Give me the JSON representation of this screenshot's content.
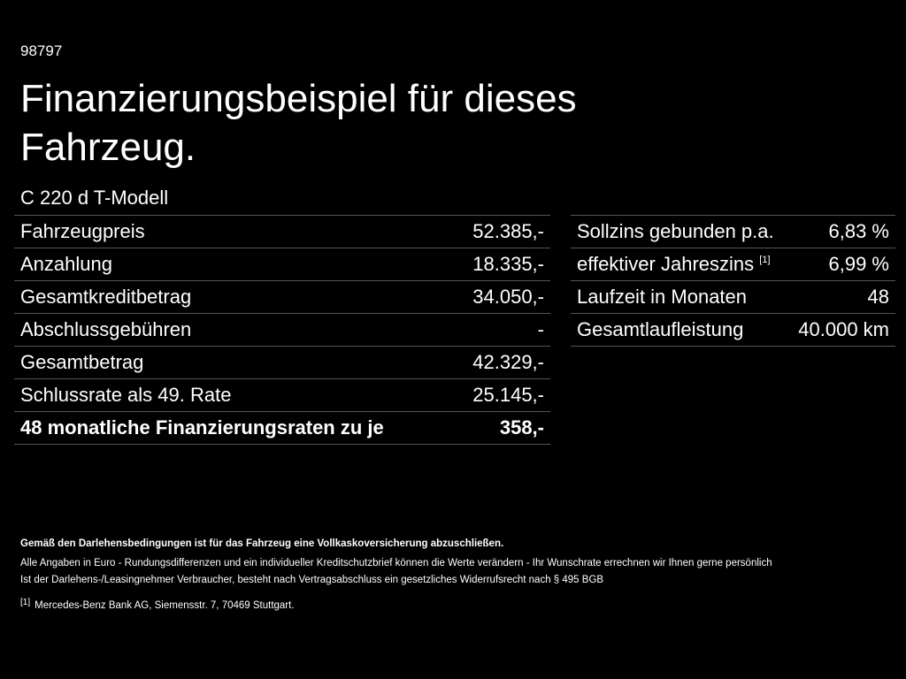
{
  "code": "98797",
  "title": "Finanzierungsbeispiel für dieses Fahrzeug.",
  "model": "C 220 d T-Modell",
  "left_table": {
    "rows": [
      [
        "Fahrzeugpreis",
        "52.385,-"
      ],
      [
        "Anzahlung",
        "18.335,-"
      ],
      [
        "Gesamtkreditbetrag",
        "34.050,-"
      ],
      [
        "Abschlussgebühren",
        "-"
      ],
      [
        "Gesamtbetrag",
        "42.329,-"
      ],
      [
        "Schlussrate als 49. Rate",
        "25.145,-"
      ],
      [
        "48 monatliche Finanzierungsraten zu je",
        "358,-"
      ]
    ]
  },
  "right_table": {
    "rows": [
      {
        "label": "Sollzins gebunden p.a.",
        "value": "6,83 %"
      },
      {
        "label": "effektiver Jahreszins",
        "ref": "[1]",
        "value": "6,99 %"
      },
      {
        "label": "Laufzeit in Monaten",
        "value": "48"
      },
      {
        "label": "Gesamtlaufleistung",
        "value": "40.000 km"
      }
    ]
  },
  "notes": {
    "bold": "Gemäß den Darlehensbedingungen ist für das Fahrzeug eine Vollkaskoversicherung abzuschließen.",
    "lines": [
      "Alle Angaben in Euro - Rundungsdifferenzen und ein individueller Kreditschutzbrief können die Werte verändern - Ihr Wunschrate errechnen wir Ihnen gerne persönlich",
      "Ist der Darlehens-/Leasingnehmer Verbraucher, besteht nach Vertragsabschluss ein gesetzliches Widerrufsrecht nach § 495 BGB"
    ]
  },
  "footnote": {
    "marker": "[1]",
    "text": "Mercedes-Benz Bank AG, Siemensstr. 7, 70469 Stuttgart."
  }
}
